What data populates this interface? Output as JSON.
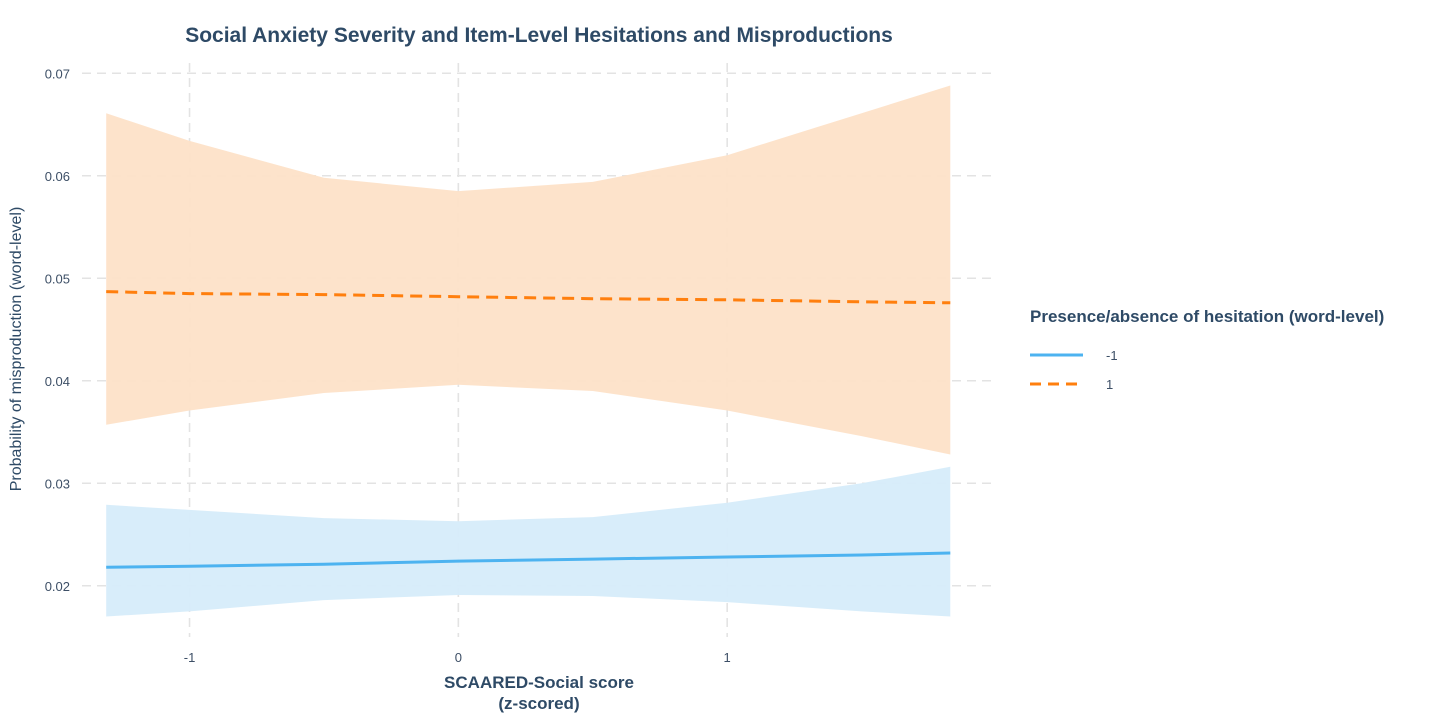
{
  "colors": {
    "series_neg": "#4db3f0",
    "series_neg_band": "#d6ecfa",
    "series_pos": "#ff7f0e",
    "series_pos_band": "#fde2c8",
    "text": "#2e4a66"
  },
  "chart_data": {
    "type": "line",
    "title": "Social Anxiety Severity and Item-Level Hesitations and Misproductions",
    "xlabel": [
      "SCAARED-Social score",
      "(z-scored)"
    ],
    "ylabel": "Probability of misproduction (word-level)",
    "xlim": [
      -1.4,
      2.0
    ],
    "ylim": [
      0.015,
      0.071
    ],
    "x_ticks": [
      -1,
      0,
      1
    ],
    "x_tick_labels": [
      "-1",
      "0",
      "1"
    ],
    "y_ticks": [
      0.02,
      0.03,
      0.04,
      0.05,
      0.06,
      0.07
    ],
    "y_tick_labels": [
      "0.02",
      "0.03",
      "0.04",
      "0.05",
      "0.06",
      "0.07"
    ],
    "grid": true,
    "legend": {
      "title": "Presence/absence of hesitation (word-level)",
      "position": "right"
    },
    "series": [
      {
        "name": "-1",
        "line_style": "solid",
        "x": [
          -1.31,
          -1.0,
          -0.5,
          0.0,
          0.5,
          1.0,
          1.5,
          1.83
        ],
        "y": [
          0.0218,
          0.0219,
          0.0221,
          0.0224,
          0.0226,
          0.0228,
          0.023,
          0.0232
        ],
        "lower": [
          0.017,
          0.0175,
          0.0186,
          0.0191,
          0.019,
          0.0184,
          0.0175,
          0.017
        ],
        "upper": [
          0.0279,
          0.0274,
          0.0266,
          0.0263,
          0.0267,
          0.0281,
          0.03,
          0.0316
        ]
      },
      {
        "name": "1",
        "line_style": "dashed",
        "x": [
          -1.31,
          -1.0,
          -0.5,
          0.0,
          0.5,
          1.0,
          1.5,
          1.83
        ],
        "y": [
          0.0487,
          0.0485,
          0.0484,
          0.0482,
          0.048,
          0.0479,
          0.0477,
          0.0476
        ],
        "lower": [
          0.0357,
          0.0371,
          0.0388,
          0.0396,
          0.039,
          0.0371,
          0.0346,
          0.0328
        ],
        "upper": [
          0.0661,
          0.0634,
          0.0598,
          0.0585,
          0.0594,
          0.062,
          0.0661,
          0.0688
        ]
      }
    ]
  }
}
